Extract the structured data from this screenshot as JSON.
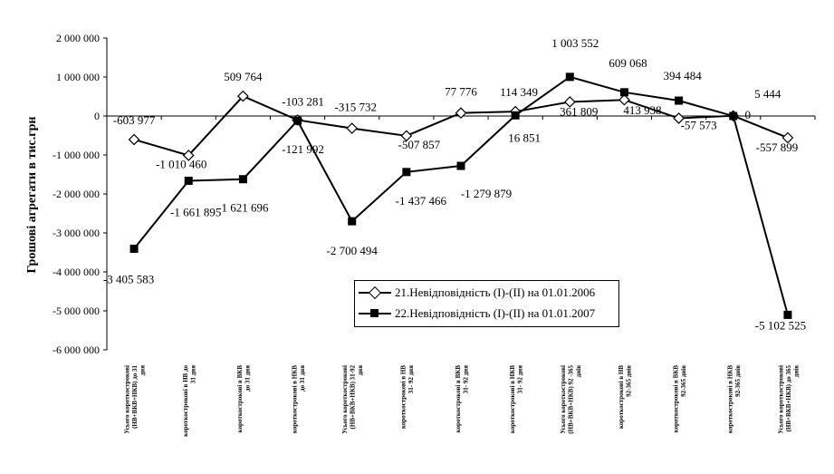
{
  "chart_data": {
    "type": "line",
    "ylabel": "Грошові агрегати в тис.грн",
    "ylim": [
      -6000000,
      2000000
    ],
    "ytick_step": 1000000,
    "ytick_labels": [
      "-6 000 000",
      "-5 000 000",
      "-4 000 000",
      "-3 000 000",
      "-2 000 000",
      "-1 000 000",
      "0",
      "1 000 000",
      "2 000 000"
    ],
    "grid": false,
    "legend_position": "lower-right",
    "categories": [
      [
        "Усього короткострокові",
        "(НВ+ВКВ+НКВ) до 31",
        "дня"
      ],
      [
        "короткострокові в НВ до",
        "31 дня"
      ],
      [
        "короткострокові в ВКВ",
        "до 31 дня"
      ],
      [
        "короткострокові в НКВ",
        "до 31 дня"
      ],
      [
        "Усього короткострокові",
        "(НВ+ВКВ+НКВ) 31-92",
        "дня"
      ],
      [
        "короткострокові в НВ",
        "31- 92 дня"
      ],
      [
        "короткострокові в ВКВ",
        "31- 92 дня"
      ],
      [
        "короткострокові в НКВ",
        "31- 92 дня"
      ],
      [
        "Усього короткострокові",
        "(НВ+ВКВ+НКВ) 92 -365",
        "днів"
      ],
      [
        "короткострокові в НВ",
        "92-365 днів"
      ],
      [
        "короткострокові в ВКВ",
        "92-365 днів"
      ],
      [
        "короткострокові в НКВ",
        "92-365 днів"
      ],
      [
        "Усього короткострокові",
        "(НВ+ВКВ+НКВ) до 365",
        "днів"
      ]
    ],
    "series": [
      {
        "name": "21.Невідповідність (I)-(II) на 01.01.2006",
        "marker": "diamond-open",
        "color": "#000000",
        "values": [
          -603977,
          -1010460,
          509764,
          -103281,
          -315732,
          -507857,
          77776,
          114349,
          361809,
          413938,
          -57573,
          5444,
          -557899
        ],
        "labels": [
          "-603 977",
          "-1 010 460",
          "509 764",
          "-103 281",
          "-315 732",
          "-507 857",
          "77 776",
          "114 349",
          "361 809",
          "413 938",
          "-57 573",
          "5 444",
          "-557 899"
        ]
      },
      {
        "name": "22.Невідповідність (I)-(II) на 01.01.2007",
        "marker": "square-filled",
        "color": "#000000",
        "values": [
          -3405583,
          -1661895,
          -1621696,
          -121992,
          -2700494,
          -1437466,
          -1279879,
          16851,
          1003552,
          609068,
          394484,
          0,
          -5102525
        ],
        "labels": [
          "-3 405 583",
          "-1 661 895",
          "-1 621 696",
          "-121 992",
          "-2 700 494",
          "-1 437 466",
          "-1 279 879",
          "16 851",
          "1 003 552",
          "609 068",
          "394 484",
          "0",
          "-5 102 525"
        ]
      }
    ]
  }
}
